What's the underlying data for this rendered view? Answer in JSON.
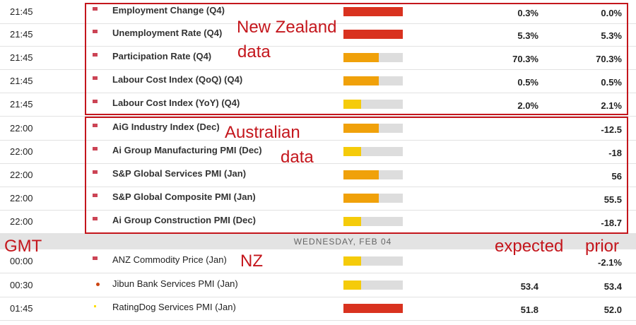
{
  "colors": {
    "high": "#d9321f",
    "medium": "#f0a10a",
    "low": "#f5cb0a",
    "annotation": "#c4161c"
  },
  "events": [
    {
      "time": "21:45",
      "flag": "new-zealand-flag",
      "country": "nz",
      "name": "Employment Change (Q4)",
      "impact": "high",
      "impact_level": 1.0,
      "expected": "0.3%",
      "prior": "0.0%"
    },
    {
      "time": "21:45",
      "flag": "new-zealand-flag",
      "country": "nz",
      "name": "Unemployment Rate (Q4)",
      "impact": "high",
      "impact_level": 1.0,
      "expected": "5.3%",
      "prior": "5.3%"
    },
    {
      "time": "21:45",
      "flag": "new-zealand-flag",
      "country": "nz",
      "name": "Participation Rate (Q4)",
      "impact": "medium",
      "impact_level": 0.6,
      "expected": "70.3%",
      "prior": "70.3%"
    },
    {
      "time": "21:45",
      "flag": "new-zealand-flag",
      "country": "nz",
      "name": "Labour Cost Index (QoQ) (Q4)",
      "impact": "medium",
      "impact_level": 0.6,
      "expected": "0.5%",
      "prior": "0.5%"
    },
    {
      "time": "21:45",
      "flag": "new-zealand-flag",
      "country": "nz",
      "name": "Labour Cost Index (YoY) (Q4)",
      "impact": "low",
      "impact_level": 0.3,
      "expected": "2.0%",
      "prior": "2.1%"
    },
    {
      "time": "22:00",
      "flag": "australia-flag",
      "country": "au",
      "name": "AiG Industry Index (Dec)",
      "impact": "medium",
      "impact_level": 0.6,
      "expected": "",
      "prior": "-12.5"
    },
    {
      "time": "22:00",
      "flag": "australia-flag",
      "country": "au",
      "name": "Ai Group Manufacturing PMI (Dec)",
      "impact": "low",
      "impact_level": 0.3,
      "expected": "",
      "prior": "-18"
    },
    {
      "time": "22:00",
      "flag": "australia-flag",
      "country": "au",
      "name": "S&P Global Services PMI (Jan)",
      "impact": "medium",
      "impact_level": 0.6,
      "expected": "",
      "prior": "56"
    },
    {
      "time": "22:00",
      "flag": "australia-flag",
      "country": "au",
      "name": "S&P Global Composite PMI (Jan)",
      "impact": "medium",
      "impact_level": 0.6,
      "expected": "",
      "prior": "55.5"
    },
    {
      "time": "22:00",
      "flag": "australia-flag",
      "country": "au",
      "name": "Ai Group Construction PMI (Dec)",
      "impact": "low",
      "impact_level": 0.3,
      "expected": "",
      "prior": "-18.7"
    }
  ],
  "day_header": "WEDNESDAY, FEB 04",
  "events2": [
    {
      "time": "00:00",
      "flag": "new-zealand-flag",
      "country": "nz",
      "name": "ANZ Commodity Price (Jan)",
      "impact": "low",
      "impact_level": 0.3,
      "expected": "",
      "prior": "-2.1%"
    },
    {
      "time": "00:30",
      "flag": "japan-flag",
      "country": "jp",
      "name": "Jibun Bank Services PMI (Jan)",
      "impact": "low",
      "impact_level": 0.3,
      "expected": "53.4",
      "prior": "53.4"
    },
    {
      "time": "01:45",
      "flag": "china-flag",
      "country": "cn",
      "name": "RatingDog Services PMI (Jan)",
      "impact": "high",
      "impact_level": 1.0,
      "expected": "51.8",
      "prior": "52.0"
    }
  ],
  "annotations": {
    "nz_line1": "New Zealand",
    "nz_line2": "data",
    "au_line1": "Australian",
    "au_line2": "data",
    "gmt": "GMT",
    "expected": "expected",
    "prior": "prior",
    "nz": "NZ"
  }
}
